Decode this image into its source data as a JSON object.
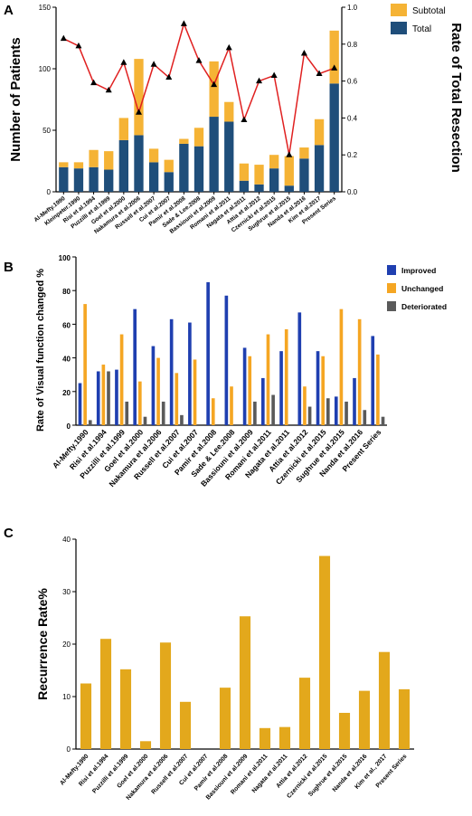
{
  "chart_data": [
    {
      "panel": "A",
      "type": "bar",
      "stacked": true,
      "categories": [
        "Al-Mefty.1990",
        "Kleinpeter.1990",
        "Risi et al.1994",
        "Puzzilli et al.1999",
        "Goel et al.2000",
        "Nakamura et al.2006",
        "Russell et al.2007",
        "Cui et al.2007",
        "Pamir et al.2008",
        "Sade & Lee.2008",
        "Bassiouni et al.2009",
        "Romani et al.2011",
        "Nagata et al.2011",
        "Attia et al.2012",
        "Czernicki et al.2015",
        "Sughrue et al.2015",
        "Nanda et al.2016",
        "Kim et al.2017",
        "Present Series"
      ],
      "series": [
        {
          "name": "Total",
          "color": "#1f4e7a",
          "values": [
            20,
            19,
            20,
            18,
            42,
            46,
            24,
            16,
            39,
            37,
            61,
            57,
            9,
            6,
            19,
            5,
            27,
            38,
            88
          ]
        },
        {
          "name": "Subtotal",
          "color": "#f5b335",
          "values": [
            4,
            5,
            14,
            15,
            18,
            62,
            11,
            10,
            4,
            15,
            45,
            16,
            14,
            16,
            11,
            24,
            9,
            21,
            43
          ]
        }
      ],
      "line": {
        "name": "Rate of Total Resection",
        "color": "#e02020",
        "values": [
          0.83,
          0.79,
          0.59,
          0.55,
          0.7,
          0.43,
          0.69,
          0.62,
          0.91,
          0.71,
          0.58,
          0.78,
          0.39,
          0.6,
          0.63,
          0.2,
          0.75,
          0.64,
          0.67
        ]
      },
      "ylabel": "Number of Patients",
      "y2label": "Rate of Total Resection",
      "ylim": [
        0,
        150
      ],
      "yticks": [
        0,
        50,
        100,
        150
      ],
      "y2lim": [
        0,
        1.0
      ],
      "y2ticks": [
        "0.0",
        "0.2",
        "0.4",
        "0.6",
        "0.8",
        "1.0"
      ],
      "legend_position": "top-right"
    },
    {
      "panel": "B",
      "type": "bar",
      "categories": [
        "Al-Mefty.1990",
        "Risi et al.1994",
        "Puzzilli et al.1999",
        "Goel et al.2000",
        "Nakamura et al.2006",
        "Russell et al.2007",
        "Cui et al.2007",
        "Pamir et al.2008",
        "Sade & Lee.2008",
        "Bassiouni et al.2009",
        "Romani et al.2011",
        "Nagata et al.2011",
        "Attia et al.2012",
        "Czernicki et al.2015",
        "Sughrue et al.2015",
        "Nanda et al.2016",
        "Present Series"
      ],
      "series": [
        {
          "name": "Improved",
          "color": "#1f3fb0",
          "values": [
            25,
            32,
            33,
            69,
            47,
            63,
            61,
            85,
            77,
            46,
            28,
            44,
            67,
            44,
            17,
            28,
            53
          ]
        },
        {
          "name": "Unchanged",
          "color": "#f5a623",
          "values": [
            72,
            36,
            54,
            26,
            40,
            31,
            39,
            16,
            23,
            41,
            54,
            57,
            23,
            41,
            69,
            63,
            42
          ]
        },
        {
          "name": "Deteriorated",
          "color": "#5a5a5a",
          "values": [
            3,
            32,
            14,
            5,
            14,
            6,
            0,
            0,
            0,
            14,
            18,
            0,
            11,
            16,
            14,
            9,
            5
          ]
        }
      ],
      "ylabel": "Rate of Visual function changed %",
      "ylim": [
        0,
        100
      ],
      "yticks": [
        0,
        20,
        40,
        60,
        80,
        100
      ],
      "legend_position": "right"
    },
    {
      "panel": "C",
      "type": "bar",
      "categories": [
        "Al-Mefty.1990",
        "Risi et al.1994",
        "Puzzilli et al.1999",
        "Goel et al.2000",
        "Nakamura et al.2006",
        "Russell et al.2007",
        "Cui et al.2007",
        "Pamir et al.2008",
        "Bassiouni et al.2009",
        "Romani et al.2011",
        "Nagata et al.2011",
        "Attia et al.2012",
        "Czernicki et al.2015",
        "Sughrue et al.2015",
        "Nanda et al.2016",
        "Kim et al., 2017",
        "Present Series"
      ],
      "series": [
        {
          "color": "#e3a81c",
          "values": [
            12.5,
            21,
            15.2,
            1.5,
            20.3,
            9,
            0,
            11.7,
            25.3,
            4,
            4.2,
            13.6,
            36.8,
            6.9,
            11.1,
            18.5,
            11.4
          ]
        }
      ],
      "ylabel": "Recurrence Rate%",
      "ylim": [
        0,
        40
      ],
      "yticks": [
        0,
        10,
        20,
        30,
        40
      ]
    }
  ],
  "labels": {
    "panel_a": "A",
    "panel_b": "B",
    "panel_c": "C"
  }
}
